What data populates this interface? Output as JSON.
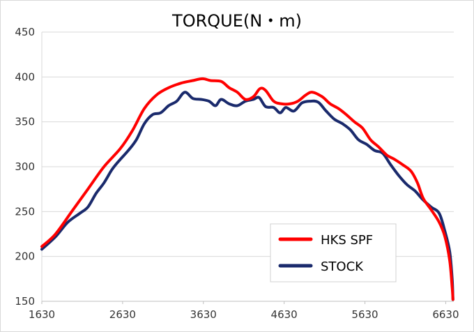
{
  "chart_data": {
    "type": "line",
    "title": "TORQUE(N・m)",
    "xlabel": "",
    "ylabel": "",
    "xlim": [
      1630,
      6730
    ],
    "ylim": [
      150,
      450
    ],
    "x_ticks": [
      "1630",
      "2630",
      "3630",
      "4630",
      "5630",
      "6630"
    ],
    "y_ticks": [
      "150",
      "200",
      "250",
      "300",
      "350",
      "400",
      "450"
    ],
    "grid": "horizontal",
    "legend_position": "lower-right",
    "series": [
      {
        "name": "HKS SPF",
        "color": "#ff0000",
        "points": [
          [
            1630,
            211
          ],
          [
            1800,
            225
          ],
          [
            2000,
            250
          ],
          [
            2200,
            275
          ],
          [
            2400,
            300
          ],
          [
            2600,
            320
          ],
          [
            2750,
            340
          ],
          [
            2900,
            365
          ],
          [
            3050,
            380
          ],
          [
            3200,
            388
          ],
          [
            3350,
            393
          ],
          [
            3500,
            396
          ],
          [
            3620,
            398
          ],
          [
            3720,
            396
          ],
          [
            3850,
            395
          ],
          [
            3950,
            388
          ],
          [
            4050,
            383
          ],
          [
            4150,
            375
          ],
          [
            4250,
            378
          ],
          [
            4330,
            387
          ],
          [
            4400,
            385
          ],
          [
            4500,
            373
          ],
          [
            4600,
            370
          ],
          [
            4700,
            370
          ],
          [
            4800,
            373
          ],
          [
            4900,
            380
          ],
          [
            4980,
            383
          ],
          [
            5100,
            378
          ],
          [
            5200,
            370
          ],
          [
            5300,
            365
          ],
          [
            5400,
            358
          ],
          [
            5500,
            350
          ],
          [
            5600,
            343
          ],
          [
            5700,
            330
          ],
          [
            5800,
            322
          ],
          [
            5900,
            313
          ],
          [
            6000,
            308
          ],
          [
            6100,
            302
          ],
          [
            6200,
            295
          ],
          [
            6280,
            282
          ],
          [
            6350,
            265
          ],
          [
            6450,
            252
          ],
          [
            6550,
            238
          ],
          [
            6620,
            222
          ],
          [
            6680,
            195
          ],
          [
            6710,
            165
          ],
          [
            6720,
            152
          ]
        ]
      },
      {
        "name": "STOCK",
        "color": "#1a2a6c",
        "points": [
          [
            1630,
            208
          ],
          [
            1800,
            222
          ],
          [
            1950,
            238
          ],
          [
            2100,
            248
          ],
          [
            2200,
            255
          ],
          [
            2300,
            270
          ],
          [
            2400,
            282
          ],
          [
            2500,
            297
          ],
          [
            2600,
            308
          ],
          [
            2700,
            318
          ],
          [
            2800,
            330
          ],
          [
            2900,
            348
          ],
          [
            3000,
            358
          ],
          [
            3100,
            360
          ],
          [
            3200,
            368
          ],
          [
            3300,
            373
          ],
          [
            3400,
            383
          ],
          [
            3500,
            376
          ],
          [
            3600,
            375
          ],
          [
            3700,
            373
          ],
          [
            3780,
            368
          ],
          [
            3850,
            375
          ],
          [
            3950,
            370
          ],
          [
            4050,
            368
          ],
          [
            4150,
            373
          ],
          [
            4250,
            375
          ],
          [
            4320,
            377
          ],
          [
            4400,
            367
          ],
          [
            4500,
            366
          ],
          [
            4580,
            360
          ],
          [
            4650,
            366
          ],
          [
            4750,
            362
          ],
          [
            4850,
            371
          ],
          [
            4950,
            373
          ],
          [
            5050,
            372
          ],
          [
            5150,
            362
          ],
          [
            5250,
            353
          ],
          [
            5350,
            348
          ],
          [
            5450,
            341
          ],
          [
            5550,
            330
          ],
          [
            5650,
            325
          ],
          [
            5750,
            318
          ],
          [
            5850,
            315
          ],
          [
            5950,
            302
          ],
          [
            6050,
            290
          ],
          [
            6150,
            280
          ],
          [
            6250,
            273
          ],
          [
            6350,
            263
          ],
          [
            6450,
            255
          ],
          [
            6550,
            248
          ],
          [
            6620,
            228
          ],
          [
            6680,
            205
          ],
          [
            6710,
            175
          ],
          [
            6720,
            152
          ]
        ]
      }
    ]
  }
}
